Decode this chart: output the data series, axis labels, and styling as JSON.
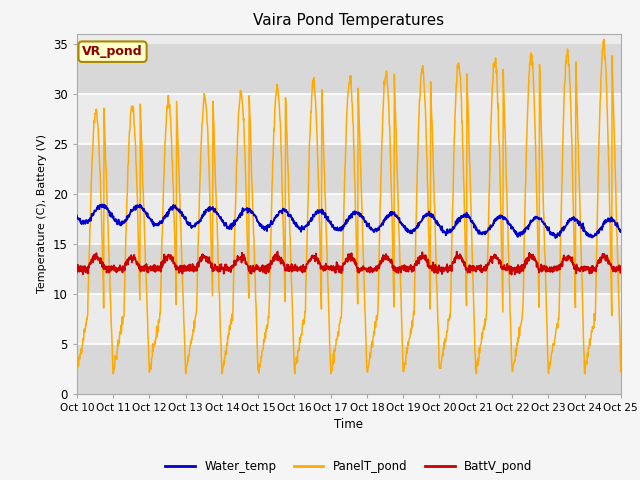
{
  "title": "Vaira Pond Temperatures",
  "ylabel": "Temperature (C), Battery (V)",
  "xlabel": "Time",
  "xlim_start": 0,
  "xlim_end": 15,
  "ylim": [
    0,
    36
  ],
  "yticks": [
    0,
    5,
    10,
    15,
    20,
    25,
    30,
    35
  ],
  "xtick_labels": [
    "Oct 10",
    "Oct 11",
    "Oct 12",
    "Oct 13",
    "Oct 14",
    "Oct 15",
    "Oct 16",
    "Oct 17",
    "Oct 18",
    "Oct 19",
    "Oct 20",
    "Oct 21",
    "Oct 22",
    "Oct 23",
    "Oct 24",
    "Oct 25"
  ],
  "legend_labels": [
    "Water_temp",
    "PanelT_pond",
    "BattV_pond"
  ],
  "annotation_text": "VR_pond",
  "water_temp_color": "#0000cc",
  "panel_temp_color": "#ffaa00",
  "batt_color": "#cc0000",
  "n_points": 1500,
  "bg_light": "#ebebeb",
  "bg_dark": "#d8d8d8",
  "fig_bg": "#f5f5f5"
}
